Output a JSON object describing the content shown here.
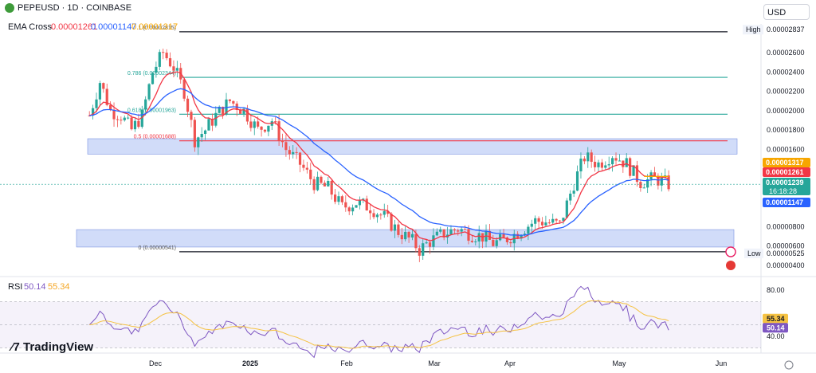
{
  "header": {
    "symbol": "PEPEUSD · 1D · COINBASE",
    "indicator_label": "EMA Cross",
    "ema_fast": "0.00001261",
    "ema_slow": "0.00001147",
    "ema_third": "0.00001317",
    "currency": "USD"
  },
  "rsi_header": {
    "label": "RSI",
    "value1": "50.14",
    "value2": "55.34"
  },
  "branding": "TradingView",
  "colors": {
    "up": "#26a69a",
    "down": "#ef5350",
    "ema_fast": "#f23645",
    "ema_slow": "#2962ff",
    "ema_third": "#f7a600",
    "rsi": "#7e57c2",
    "rsi_ma": "#f5c242",
    "zone": "#b2c4f5"
  },
  "chart_data": {
    "type": "candlestick",
    "x_labels": [
      "Dec",
      "2025",
      "Feb",
      "Mar",
      "Apr",
      "May",
      "Jun"
    ],
    "y_ticks": [
      "0.00002600",
      "0.00002400",
      "0.00002200",
      "0.00002000",
      "0.00001800",
      "0.00001600",
      "0.00000800",
      "0.00000600",
      "0.00000400"
    ],
    "high": {
      "label": "High",
      "value": "0.00002837"
    },
    "low": {
      "label": "Low",
      "value": "0.00000525"
    },
    "price_labels": [
      {
        "value": "0.00001317",
        "color": "#f7a600"
      },
      {
        "value": "0.00001261",
        "color": "#f23645"
      },
      {
        "value": "0.00001239",
        "color": "#26a69a",
        "sub": "16:18:28"
      },
      {
        "value": "0.00001147",
        "color": "#2962ff"
      }
    ],
    "fib_levels": [
      {
        "label": "1 (0.00002815)",
        "value": 2.815e-05
      },
      {
        "label": "0.786 (0.00002344)",
        "value": 2.344e-05
      },
      {
        "label": "0.618 (0.00001963)",
        "value": 1.963e-05
      },
      {
        "label": "0.5 (0.00001688)",
        "value": 1.688e-05
      },
      {
        "label": "0 (0.00000541)",
        "value": 5.41e-06
      }
    ],
    "zones": [
      {
        "from": 1.55e-05,
        "to": 1.71e-05
      },
      {
        "from": 5.9e-06,
        "to": 7.7e-06
      }
    ],
    "series": [
      {
        "name": "EMA 0.00001261",
        "value": 1.261e-05
      },
      {
        "name": "EMA 0.00001147",
        "value": 1.147e-05
      },
      {
        "name": "EMA 0.00001317",
        "value": 1.317e-05
      }
    ],
    "rsi": {
      "ticks": [
        "80.00",
        "40.00"
      ],
      "value": 50.14,
      "ma": 55.34,
      "upper": 70,
      "lower": 30
    }
  }
}
